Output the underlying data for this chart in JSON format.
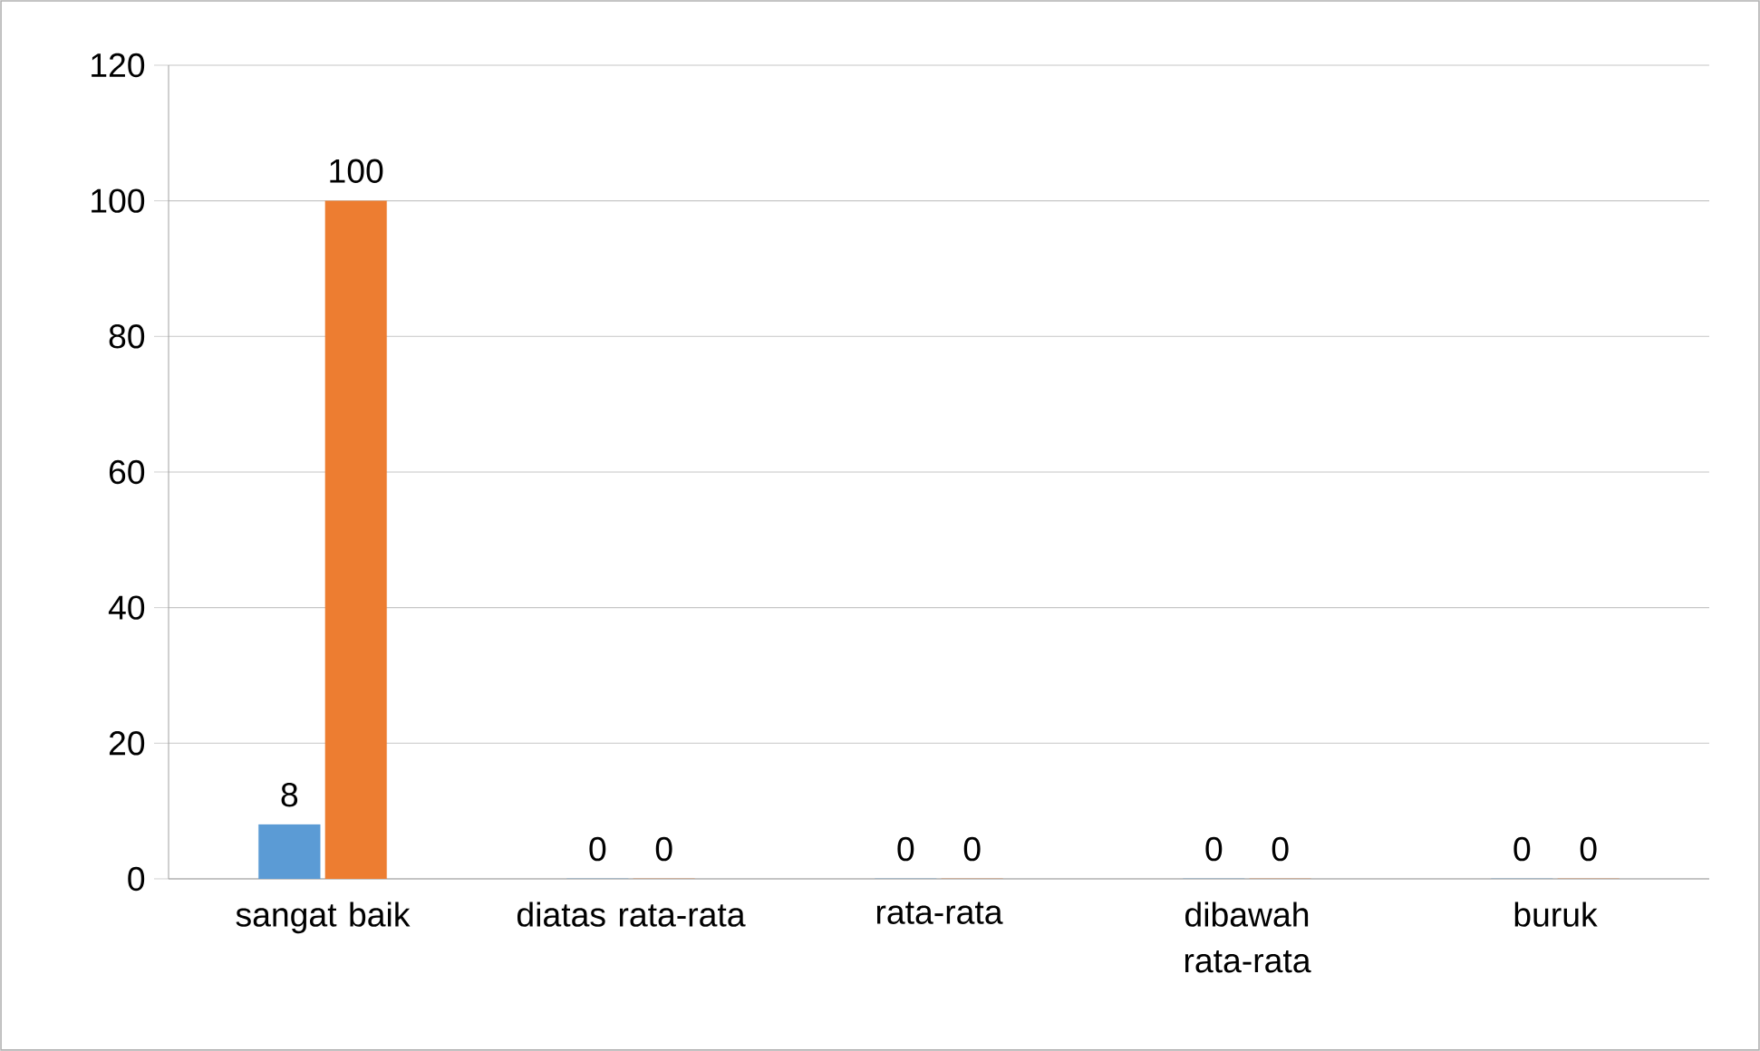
{
  "chart_data": {
    "type": "bar",
    "categories": [
      "sangat baik",
      "diatas rata-rata",
      "rata-rata",
      "dibawah rata-rata",
      "buruk"
    ],
    "series": [
      {
        "color": "#5b9bd5",
        "values": [
          8,
          0,
          0,
          0,
          0
        ]
      },
      {
        "color": "#ed7d31",
        "values": [
          100,
          0,
          0,
          0,
          0
        ]
      }
    ],
    "ylim": [
      0,
      120
    ],
    "yticks": [
      0,
      20,
      40,
      60,
      80,
      100,
      120
    ],
    "grid": "y",
    "data_labels": true
  }
}
